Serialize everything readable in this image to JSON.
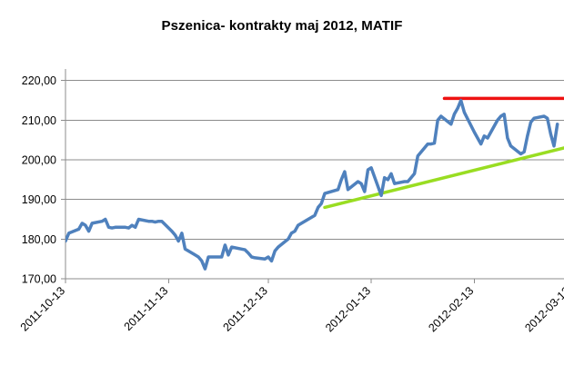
{
  "chart_data": {
    "type": "line",
    "title": "Pszenica- kontrakty maj 2012, MATIF",
    "xlabel": "",
    "ylabel": "",
    "ylim": [
      170,
      222
    ],
    "xlim": [
      "2011-10-13",
      "2012-03-11"
    ],
    "grid": true,
    "legend": "none",
    "y_ticks": [
      "170,00",
      "180,00",
      "190,00",
      "200,00",
      "210,00",
      "220,00"
    ],
    "x_ticks": [
      "2011-10-13",
      "2011-11-13",
      "2011-12-13",
      "2012-01-13",
      "2012-02-13",
      "2012-03-13"
    ],
    "series": [
      {
        "color": "#4f81bd",
        "x": [
          "2011-10-13",
          "2011-10-14",
          "2011-10-17",
          "2011-10-18",
          "2011-10-19",
          "2011-10-20",
          "2011-10-21",
          "2011-10-24",
          "2011-10-25",
          "2011-10-26",
          "2011-10-27",
          "2011-10-28",
          "2011-10-31",
          "2011-11-01",
          "2011-11-02",
          "2011-11-03",
          "2011-11-04",
          "2011-11-07",
          "2011-11-08",
          "2011-11-09",
          "2011-11-10",
          "2011-11-11",
          "2011-11-14",
          "2011-11-15",
          "2011-11-16",
          "2011-11-17",
          "2011-11-18",
          "2011-11-21",
          "2011-11-22",
          "2011-11-23",
          "2011-11-24",
          "2011-11-25",
          "2011-11-28",
          "2011-11-29",
          "2011-11-30",
          "2011-12-01",
          "2011-12-02",
          "2011-12-05",
          "2011-12-06",
          "2011-12-07",
          "2011-12-08",
          "2011-12-09",
          "2011-12-12",
          "2011-12-13",
          "2011-12-14",
          "2011-12-15",
          "2011-12-16",
          "2011-12-19",
          "2011-12-20",
          "2011-12-21",
          "2011-12-22",
          "2011-12-23",
          "2011-12-27",
          "2011-12-28",
          "2011-12-29",
          "2011-12-30",
          "2012-01-03",
          "2012-01-04",
          "2012-01-05",
          "2012-01-06",
          "2012-01-09",
          "2012-01-10",
          "2012-01-11",
          "2012-01-12",
          "2012-01-13",
          "2012-01-16",
          "2012-01-17",
          "2012-01-18",
          "2012-01-19",
          "2012-01-20",
          "2012-01-23",
          "2012-01-24",
          "2012-01-25",
          "2012-01-26",
          "2012-01-27",
          "2012-01-30",
          "2012-01-31",
          "2012-02-01",
          "2012-02-02",
          "2012-02-03",
          "2012-02-06",
          "2012-02-07",
          "2012-02-08",
          "2012-02-09",
          "2012-02-10",
          "2012-02-13",
          "2012-02-14",
          "2012-02-15",
          "2012-02-16",
          "2012-02-17",
          "2012-02-20",
          "2012-02-21",
          "2012-02-22",
          "2012-02-23",
          "2012-02-24",
          "2012-02-27",
          "2012-02-28",
          "2012-02-29",
          "2012-03-01",
          "2012-03-02",
          "2012-03-05",
          "2012-03-06",
          "2012-03-07",
          "2012-03-08",
          "2012-03-09"
        ],
        "values": [
          179.5,
          181.5,
          182.5,
          184,
          183.5,
          182,
          184,
          184.5,
          185,
          183,
          182.8,
          183,
          183,
          182.8,
          183.5,
          183,
          185,
          184.5,
          184.5,
          184.3,
          184.5,
          184.5,
          182,
          181,
          179.5,
          181.5,
          177.5,
          176,
          175.5,
          174.5,
          172.5,
          175.5,
          175.5,
          175.5,
          178.5,
          176,
          178,
          177.5,
          177.3,
          176.5,
          175.5,
          175.3,
          175,
          175.5,
          174.5,
          177,
          178,
          180,
          181.5,
          182,
          183.5,
          184,
          186,
          188,
          189,
          191.5,
          192.5,
          195,
          197,
          192.5,
          194.5,
          194,
          192,
          197.5,
          198,
          191,
          195.5,
          195,
          196.5,
          194,
          194.5,
          194.5,
          195.5,
          196.5,
          201,
          204,
          204,
          204.2,
          210,
          211,
          209,
          211.5,
          213,
          215,
          212,
          207,
          205.5,
          204,
          206,
          205.5,
          210,
          211,
          211.5,
          205.5,
          203.5,
          201.5,
          202,
          206,
          209.5,
          210.5,
          211,
          210.5,
          206.5,
          203.5,
          209
        ]
      },
      {
        "color": "#99dd22",
        "x": [
          "2011-12-30",
          "2012-03-11"
        ],
        "values": [
          188,
          203
        ]
      },
      {
        "color": "#ee1111",
        "x": [
          "2012-02-04",
          "2012-03-11"
        ],
        "values": [
          215.5,
          215.5
        ]
      }
    ]
  }
}
